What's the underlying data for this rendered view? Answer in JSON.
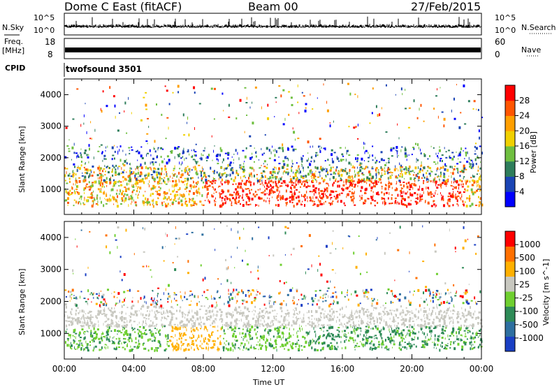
{
  "header": {
    "station": "Dome C East (fitACF)",
    "beam": "Beam 00",
    "date": "27/Feb/2015"
  },
  "strips": {
    "nsky_label": "N.Sky",
    "nsky_top": "10^5",
    "nsky_bottom": "10^0",
    "nsearch_label": "N.Search",
    "nsearch_top": "10^5",
    "nsearch_bottom": "10^0",
    "freq_label": "Freq.",
    "freq_unit": "[MHz]",
    "freq_top": "18",
    "freq_bottom": "8",
    "nave_label": "Nave",
    "nave_top": "60",
    "nave_bottom": "0",
    "cpid_label": "CPID",
    "cpid_value": "twofsound 3501"
  },
  "chart_data": [
    {
      "type": "heatmap",
      "name": "power",
      "ylabel": "Slant Range [km]",
      "y_ticks": [
        "4000",
        "3000",
        "2000",
        "1000"
      ],
      "ylim": [
        200,
        4500
      ],
      "colorbar_label": "Power [dB]",
      "colorbar_ticks": [
        "28",
        "24",
        "20",
        "16",
        "12",
        "8",
        "4"
      ],
      "colors": [
        "#0000ff",
        "#1a44b4",
        "#2e7d5b",
        "#6fbf40",
        "#f0d000",
        "#ff9f00",
        "#ff5500",
        "#ff0000"
      ]
    },
    {
      "type": "heatmap",
      "name": "velocity",
      "ylabel": "Slant Range [km]",
      "y_ticks": [
        "4000",
        "3000",
        "2000",
        "1000"
      ],
      "ylim": [
        200,
        4500
      ],
      "colorbar_label": "Velocity [m s^-1]",
      "colorbar_ticks": [
        "1000",
        "500",
        "100",
        "25",
        "-25",
        "-100",
        "-500",
        "-1000"
      ],
      "colors": [
        "#1a3fc4",
        "#2e6fa0",
        "#2e8b57",
        "#6fcf30",
        "#c8c8c0",
        "#ffb000",
        "#ff7000",
        "#ff0000"
      ]
    }
  ],
  "x_axis": {
    "ticks": [
      "00:00",
      "04:00",
      "08:00",
      "12:00",
      "16:00",
      "20:00",
      "00:00"
    ],
    "label": "Time UT"
  }
}
